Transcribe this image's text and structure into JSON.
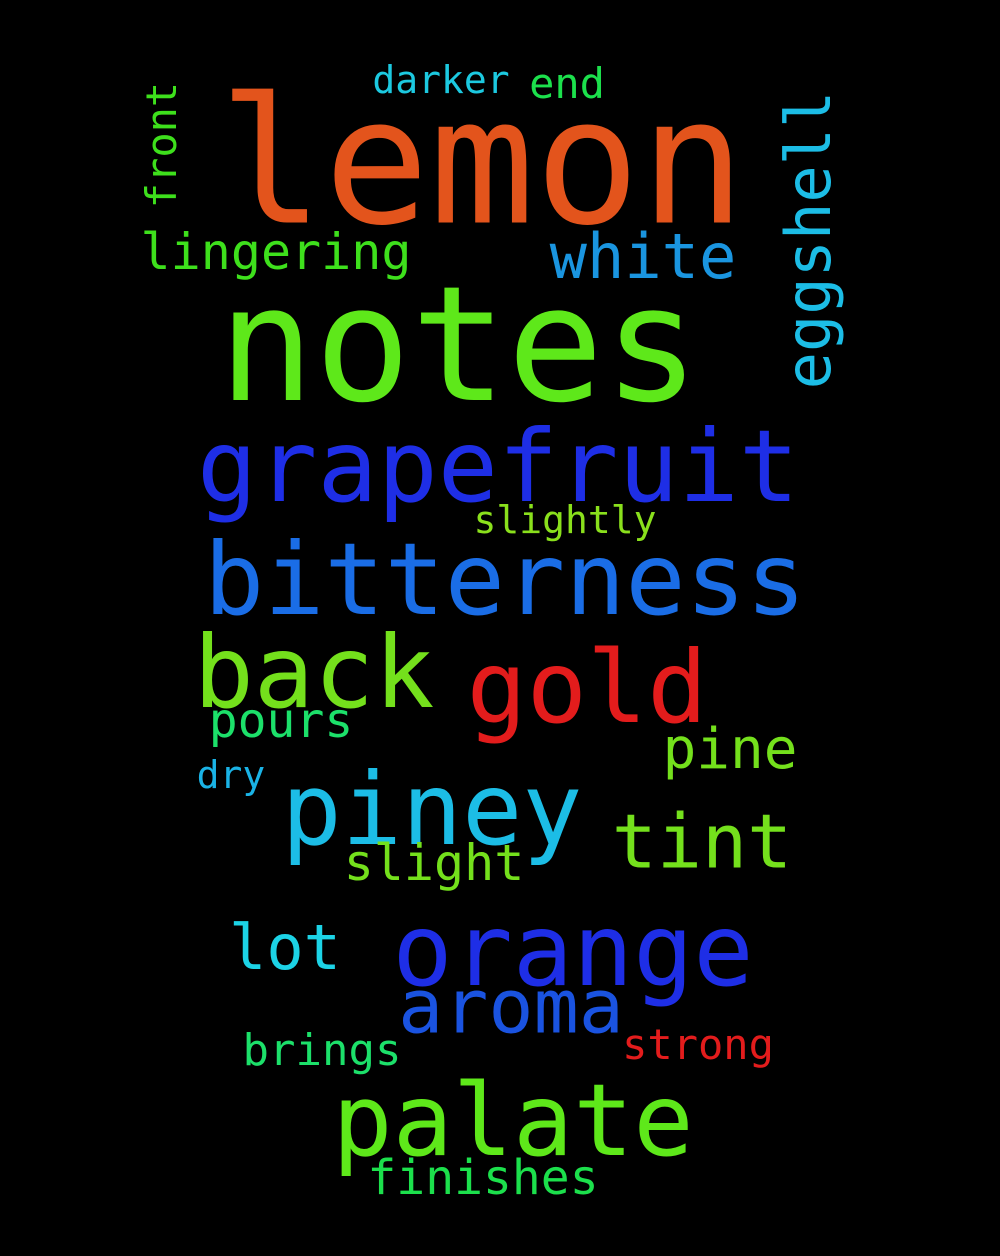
{
  "background": "#000000",
  "words": [
    {
      "text": "lemon",
      "color": "#e3541c",
      "orientation": "horizontal"
    },
    {
      "text": "notes",
      "color": "#5ee81a",
      "orientation": "horizontal"
    },
    {
      "text": "grapefruit",
      "color": "#1e2ee6",
      "orientation": "horizontal"
    },
    {
      "text": "bitterness",
      "color": "#1a6de6",
      "orientation": "horizontal"
    },
    {
      "text": "back",
      "color": "#74e01c",
      "orientation": "horizontal"
    },
    {
      "text": "gold",
      "color": "#e31c1c",
      "orientation": "horizontal"
    },
    {
      "text": "piney",
      "color": "#1cbde6",
      "orientation": "horizontal"
    },
    {
      "text": "orange",
      "color": "#1e2ee6",
      "orientation": "horizontal"
    },
    {
      "text": "palate",
      "color": "#5ee81a",
      "orientation": "horizontal"
    },
    {
      "text": "tint",
      "color": "#74e01c",
      "orientation": "horizontal"
    },
    {
      "text": "aroma",
      "color": "#1a53e0",
      "orientation": "horizontal"
    },
    {
      "text": "white",
      "color": "#1a95e0",
      "orientation": "horizontal"
    },
    {
      "text": "eggshell",
      "color": "#1cbde6",
      "orientation": "vertical"
    },
    {
      "text": "pine",
      "color": "#74e01c",
      "orientation": "horizontal"
    },
    {
      "text": "lot",
      "color": "#1cd3e6",
      "orientation": "horizontal"
    },
    {
      "text": "lingering",
      "color": "#3ee01c",
      "orientation": "horizontal"
    },
    {
      "text": "slight",
      "color": "#74e01c",
      "orientation": "horizontal"
    },
    {
      "text": "pours",
      "color": "#1ce06a",
      "orientation": "horizontal"
    },
    {
      "text": "finishes",
      "color": "#1ce04c",
      "orientation": "horizontal"
    },
    {
      "text": "brings",
      "color": "#1ce06a",
      "orientation": "horizontal"
    },
    {
      "text": "front",
      "color": "#3ee01c",
      "orientation": "vertical"
    },
    {
      "text": "strong",
      "color": "#e31c1c",
      "orientation": "horizontal"
    },
    {
      "text": "slightly",
      "color": "#8ae01c",
      "orientation": "horizontal"
    },
    {
      "text": "darker",
      "color": "#1cc9e0",
      "orientation": "horizontal"
    },
    {
      "text": "end",
      "color": "#1ce04c",
      "orientation": "horizontal"
    },
    {
      "text": "dry",
      "color": "#1ab3e6",
      "orientation": "horizontal"
    }
  ]
}
